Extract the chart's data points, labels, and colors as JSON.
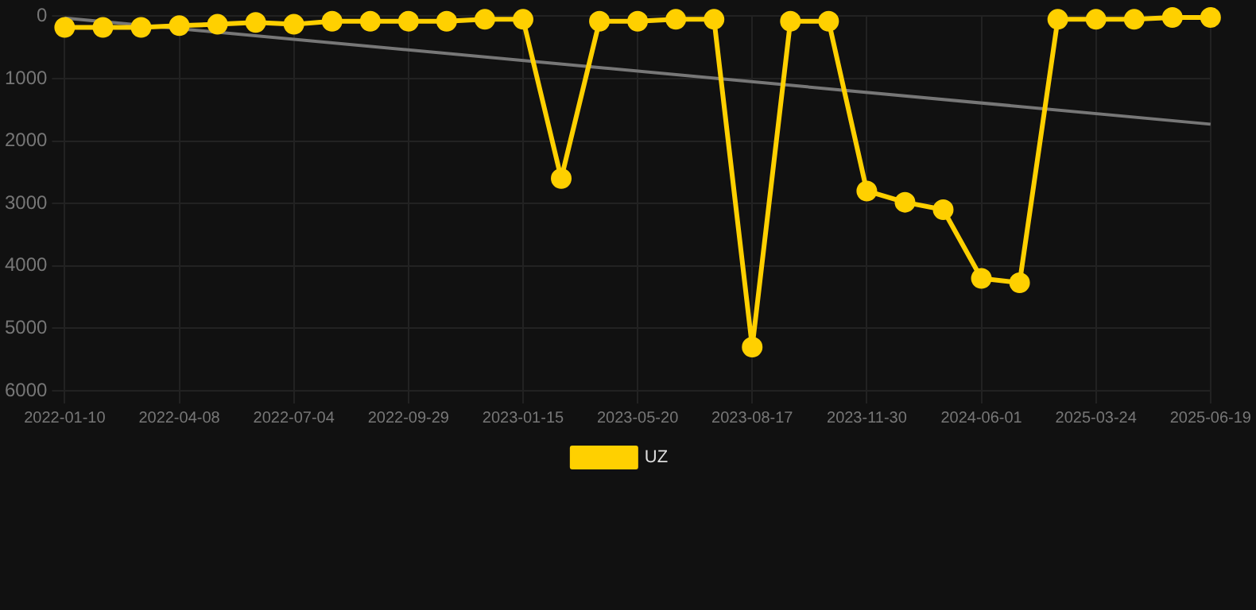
{
  "chart_data": {
    "type": "line",
    "categories": [
      "2022-01-10",
      null,
      null,
      "2022-04-08",
      null,
      null,
      "2022-07-04",
      null,
      null,
      "2022-09-29",
      null,
      null,
      "2023-01-15",
      null,
      null,
      "2023-05-20",
      null,
      null,
      "2023-08-17",
      null,
      null,
      "2023-11-30",
      null,
      null,
      "2024-06-01",
      null,
      null,
      "2025-03-24",
      null,
      null,
      "2025-06-19"
    ],
    "series": [
      {
        "name": "UZ",
        "color": "#ffd000",
        "marker": "circle",
        "values": [
          180,
          180,
          180,
          150,
          130,
          100,
          130,
          80,
          80,
          80,
          80,
          50,
          50,
          2600,
          80,
          80,
          50,
          50,
          5300,
          80,
          80,
          2800,
          2980,
          3100,
          4200,
          4270,
          50,
          50,
          50,
          20,
          20
        ]
      },
      {
        "color": "#777777",
        "marker": "none",
        "values": [
          30,
          null,
          null,
          null,
          null,
          null,
          null,
          null,
          null,
          null,
          null,
          null,
          null,
          null,
          null,
          null,
          null,
          null,
          null,
          null,
          null,
          null,
          null,
          null,
          null,
          null,
          null,
          null,
          null,
          null,
          1730
        ]
      }
    ],
    "ylim": [
      6000,
      0
    ],
    "yticks": [
      0,
      1000,
      2000,
      3000,
      4000,
      5000,
      6000
    ],
    "grid": true,
    "legend": "bottom"
  }
}
